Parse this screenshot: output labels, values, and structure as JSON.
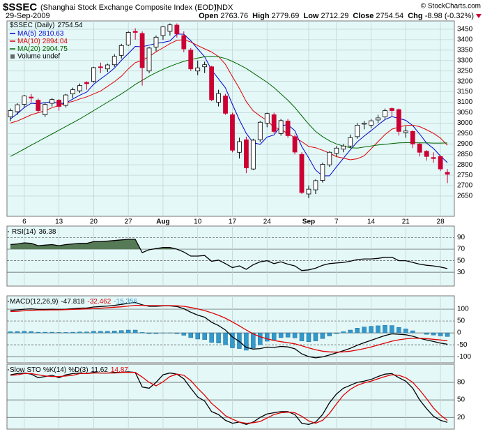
{
  "chart_data": [
    {
      "type": "candlestick",
      "title": "$SSEC",
      "subtitle": "(Shanghai Stock Exchange Composite Index (EOD))",
      "exchange": "INDX",
      "date": "29-Sep-2009",
      "source": "© StockCharts.com",
      "ohlc_labels": [
        "Open",
        "High",
        "Low",
        "Close",
        "Chg"
      ],
      "change": "-8.98 (-0.32%)",
      "legend_label": "$SSEC (Daily)",
      "volume_label": "Volume undef",
      "up_color": "#ffffff",
      "down_color": "#cc0033",
      "ohlc": [
        [
          3030,
          3070,
          3010,
          3060
        ],
        [
          3055,
          3095,
          3040,
          3088
        ],
        [
          3090,
          3135,
          3075,
          3130
        ],
        [
          3125,
          3140,
          3100,
          3120
        ],
        [
          3110,
          3118,
          3050,
          3060
        ],
        [
          3040,
          3095,
          3030,
          3090
        ],
        [
          3095,
          3120,
          3080,
          3113
        ],
        [
          3110,
          3115,
          3060,
          3080
        ],
        [
          3085,
          3140,
          3075,
          3135
        ],
        [
          3140,
          3170,
          3120,
          3160
        ],
        [
          3155,
          3190,
          3145,
          3180
        ],
        [
          3195,
          3200,
          3160,
          3189
        ],
        [
          3200,
          3270,
          3195,
          3266
        ],
        [
          3270,
          3290,
          3240,
          3266
        ],
        [
          3260,
          3285,
          3245,
          3279
        ],
        [
          3280,
          3330,
          3270,
          3320
        ],
        [
          3325,
          3380,
          3310,
          3372
        ],
        [
          3375,
          3440,
          3370,
          3435
        ],
        [
          3440,
          3455,
          3400,
          3435
        ],
        [
          3430,
          3440,
          3180,
          3266
        ],
        [
          3250,
          3365,
          3240,
          3360
        ],
        [
          3365,
          3420,
          3345,
          3412
        ],
        [
          3420,
          3465,
          3400,
          3462
        ],
        [
          3440,
          3478,
          3420,
          3471
        ],
        [
          3470,
          3478,
          3410,
          3428
        ],
        [
          3420,
          3440,
          3340,
          3356
        ],
        [
          3350,
          3360,
          3250,
          3260
        ],
        [
          3250,
          3300,
          3230,
          3265
        ],
        [
          3270,
          3295,
          3240,
          3280
        ],
        [
          3270,
          3275,
          3105,
          3112
        ],
        [
          3100,
          3160,
          3080,
          3142
        ],
        [
          3130,
          3140,
          3040,
          3047
        ],
        [
          3040,
          3050,
          2860,
          2870
        ],
        [
          2860,
          2930,
          2830,
          2911
        ],
        [
          2920,
          2935,
          2760,
          2785
        ],
        [
          2780,
          2925,
          2775,
          2918
        ],
        [
          2920,
          3010,
          2910,
          3004
        ],
        [
          3000,
          3050,
          2980,
          3046
        ],
        [
          3040,
          3050,
          2950,
          2960
        ],
        [
          2950,
          3020,
          2940,
          3012
        ],
        [
          3010,
          3020,
          2930,
          2940
        ],
        [
          2935,
          2945,
          2850,
          2861
        ],
        [
          2850,
          2860,
          2660,
          2667
        ],
        [
          2660,
          2700,
          2640,
          2683
        ],
        [
          2680,
          2730,
          2660,
          2724
        ],
        [
          2725,
          2810,
          2715,
          2802
        ],
        [
          2800,
          2865,
          2790,
          2860
        ],
        [
          2855,
          2890,
          2840,
          2880
        ],
        [
          2875,
          2900,
          2860,
          2890
        ],
        [
          2890,
          2945,
          2880,
          2930
        ],
        [
          2935,
          3000,
          2925,
          2990
        ],
        [
          2995,
          3010,
          2970,
          3000
        ],
        [
          2990,
          3020,
          2975,
          3011
        ],
        [
          3015,
          3040,
          3000,
          3025
        ],
        [
          3030,
          3070,
          3020,
          3060
        ],
        [
          3070,
          3075,
          3030,
          3060
        ],
        [
          3065,
          3070,
          2940,
          2960
        ],
        [
          2955,
          2985,
          2930,
          2962
        ],
        [
          2960,
          2965,
          2880,
          2900
        ],
        [
          2900,
          2905,
          2840,
          2860
        ],
        [
          2865,
          2870,
          2820,
          2840
        ],
        [
          2835,
          2860,
          2810,
          2830
        ],
        [
          2840,
          2845,
          2770,
          2780
        ],
        [
          2763.76,
          2779.69,
          2712.29,
          2754.54
        ]
      ],
      "series": [
        {
          "name": "MA(5)",
          "color": "#0000cc",
          "values": [
            3020,
            3045,
            3075,
            3095,
            3092,
            3098,
            3103,
            3093,
            3096,
            3116,
            3134,
            3149,
            3186,
            3212,
            3236,
            3264,
            3301,
            3334,
            3368,
            3366,
            3374,
            3382,
            3387,
            3394,
            3427,
            3426,
            3395,
            3356,
            3318,
            3255,
            3212,
            3169,
            3090,
            3016,
            2951,
            2906,
            2898,
            2933,
            2943,
            2988,
            2992,
            2964,
            2888,
            2833,
            2775,
            2747,
            2747,
            2790,
            2831,
            2872,
            2910,
            2938,
            2964,
            2991,
            3017,
            3031,
            3023,
            3013,
            2988,
            2948,
            2904,
            2878,
            2842,
            2810.63
          ]
        },
        {
          "name": "MA(10)",
          "color": "#e00000",
          "values": [
            3000,
            3010,
            3025,
            3040,
            3050,
            3059,
            3074,
            3084,
            3096,
            3104,
            3116,
            3126,
            3140,
            3154,
            3176,
            3199,
            3225,
            3260,
            3290,
            3301,
            3319,
            3342,
            3361,
            3381,
            3397,
            3400,
            3389,
            3372,
            3356,
            3341,
            3319,
            3282,
            3223,
            3167,
            3103,
            3059,
            3034,
            3012,
            2980,
            2970,
            2949,
            2931,
            2911,
            2888,
            2882,
            2870,
            2856,
            2839,
            2832,
            2824,
            2829,
            2843,
            2877,
            2911,
            2945,
            2971,
            2981,
            2989,
            2990,
            2983,
            2968,
            2951,
            2928,
            2894.04
          ]
        },
        {
          "name": "MA(20)",
          "color": "#006600",
          "values": [
            2840,
            2858,
            2876,
            2894,
            2912,
            2930,
            2948,
            2966,
            2984,
            3002,
            3020,
            3040,
            3060,
            3080,
            3100,
            3120,
            3140,
            3162,
            3185,
            3205,
            3225,
            3242,
            3258,
            3272,
            3285,
            3296,
            3305,
            3312,
            3318,
            3320,
            3318,
            3310,
            3296,
            3280,
            3262,
            3240,
            3218,
            3196,
            3170,
            3140,
            3110,
            3075,
            3035,
            2995,
            2960,
            2935,
            2915,
            2900,
            2890,
            2882,
            2880,
            2885,
            2890,
            2895,
            2898,
            2902,
            2905,
            2906,
            2906,
            2905,
            2905,
            2904,
            2904,
            2904.75
          ]
        }
      ],
      "xlim": [
        -0.5,
        64
      ],
      "xticks": [
        {
          "value": 2,
          "label": "6"
        },
        {
          "value": 7,
          "label": "13"
        },
        {
          "value": 12,
          "label": "20"
        },
        {
          "value": 17,
          "label": "27"
        },
        {
          "value": 22,
          "label": "Aug"
        },
        {
          "value": 27,
          "label": "10"
        },
        {
          "value": 32,
          "label": "17"
        },
        {
          "value": 37,
          "label": "24"
        },
        {
          "value": 43,
          "label": "Sep"
        },
        {
          "value": 47,
          "label": "7"
        },
        {
          "value": 52,
          "label": "14"
        },
        {
          "value": 57,
          "label": "21"
        },
        {
          "value": 62,
          "label": "28"
        }
      ],
      "ylim": [
        2553,
        3490
      ],
      "yticks": [
        2650,
        2700,
        2750,
        2800,
        2850,
        2900,
        2950,
        3000,
        3050,
        3100,
        3150,
        3200,
        3250,
        3300,
        3350,
        3400,
        3450
      ],
      "grid": true
    },
    {
      "type": "line",
      "series": [
        {
          "name": "RSI(14)",
          "color": "#000000",
          "fill": "#557a55",
          "values": [
            78,
            79,
            81,
            80,
            76,
            77,
            78,
            76,
            78,
            79,
            80,
            80,
            83,
            83,
            84,
            85,
            86,
            87,
            87,
            64,
            69,
            71,
            73,
            73,
            70,
            65,
            58,
            58,
            59,
            49,
            51,
            45,
            38,
            41,
            35,
            43,
            48,
            50,
            45,
            48,
            44,
            41,
            33,
            34,
            37,
            42,
            45,
            46,
            47,
            49,
            52,
            53,
            53,
            54,
            56,
            56,
            50,
            50,
            47,
            44,
            42,
            41,
            39,
            36.38
          ]
        }
      ],
      "ylim": [
        6,
        110
      ],
      "yticks": [
        30,
        50,
        70,
        90
      ]
    },
    {
      "type": "macd",
      "label": "MACD(12,26,9)",
      "series": [
        {
          "name": "MACD",
          "color": "#000000",
          "values": [
            95,
            97,
            100,
            101,
            99,
            99,
            100,
            99,
            100,
            102,
            104,
            105,
            109,
            111,
            113,
            116,
            120,
            125,
            128,
            118,
            112,
            112,
            114,
            114,
            111,
            102,
            87,
            75,
            66,
            45,
            31,
            12,
            -17,
            -36,
            -61,
            -68,
            -66,
            -60,
            -61,
            -57,
            -59,
            -67,
            -88,
            -100,
            -105,
            -101,
            -93,
            -84,
            -75,
            -65,
            -52,
            -41,
            -31,
            -21,
            -11,
            -4,
            -6,
            -8,
            -14,
            -23,
            -30,
            -36,
            -43,
            -47.818
          ]
        },
        {
          "name": "Signal",
          "color": "#e00000",
          "values": [
            90,
            91,
            93,
            95,
            96,
            96,
            97,
            97,
            98,
            99,
            100,
            101,
            102,
            104,
            106,
            108,
            110,
            113,
            116,
            116,
            115,
            115,
            115,
            115,
            114,
            112,
            107,
            101,
            94,
            85,
            74,
            62,
            46,
            30,
            12,
            -4,
            -16,
            -25,
            -32,
            -37,
            -41,
            -46,
            -54,
            -63,
            -71,
            -77,
            -80,
            -81,
            -80,
            -77,
            -72,
            -66,
            -59,
            -51,
            -43,
            -35,
            -29,
            -25,
            -23,
            -23,
            -24,
            -27,
            -30,
            -32.462
          ]
        },
        {
          "name": "Histogram",
          "color": "#3399cc",
          "type": "bar",
          "values": [
            5,
            6,
            7,
            6,
            3,
            3,
            3,
            2,
            2,
            3,
            4,
            4,
            7,
            7,
            7,
            8,
            10,
            12,
            12,
            2,
            -3,
            -3,
            -1,
            -1,
            -3,
            -10,
            -20,
            -26,
            -28,
            -40,
            -43,
            -50,
            -63,
            -66,
            -73,
            -64,
            -50,
            -35,
            -29,
            -20,
            -18,
            -21,
            -34,
            -37,
            -34,
            -24,
            -13,
            -3,
            5,
            12,
            20,
            25,
            28,
            30,
            32,
            31,
            23,
            17,
            9,
            0,
            -6,
            -9,
            -13,
            -15.356
          ]
        }
      ],
      "ylim": [
        -126,
        156
      ],
      "yticks": [
        -100,
        -50,
        0,
        50,
        100
      ]
    },
    {
      "type": "line",
      "label": "Slow STO",
      "series": [
        {
          "name": "%K(14)",
          "color": "#000000",
          "values": [
            93,
            95,
            96,
            94,
            88,
            90,
            92,
            88,
            93,
            95,
            96,
            95,
            97,
            96,
            96,
            97,
            97,
            98,
            97,
            72,
            70,
            80,
            93,
            96,
            94,
            86,
            70,
            55,
            48,
            30,
            25,
            15,
            10,
            12,
            8,
            12,
            20,
            26,
            28,
            30,
            30,
            25,
            10,
            8,
            12,
            25,
            45,
            60,
            70,
            75,
            80,
            82,
            85,
            90,
            94,
            95,
            88,
            82,
            70,
            50,
            35,
            22,
            15,
            11.62
          ]
        },
        {
          "name": "%D(3)",
          "color": "#e00000",
          "values": [
            92,
            93,
            95,
            95,
            93,
            91,
            90,
            90,
            91,
            92,
            95,
            95,
            96,
            96,
            96,
            96,
            97,
            97,
            97,
            89,
            80,
            74,
            81,
            90,
            94,
            92,
            83,
            70,
            58,
            44,
            34,
            23,
            17,
            12,
            10,
            11,
            13,
            19,
            25,
            28,
            29,
            28,
            22,
            14,
            10,
            15,
            27,
            43,
            58,
            68,
            75,
            79,
            82,
            86,
            90,
            93,
            92,
            88,
            80,
            67,
            52,
            36,
            24,
            14.87
          ]
        }
      ],
      "ylim": [
        0,
        111
      ],
      "yticks": [
        20,
        50,
        80
      ]
    }
  ]
}
